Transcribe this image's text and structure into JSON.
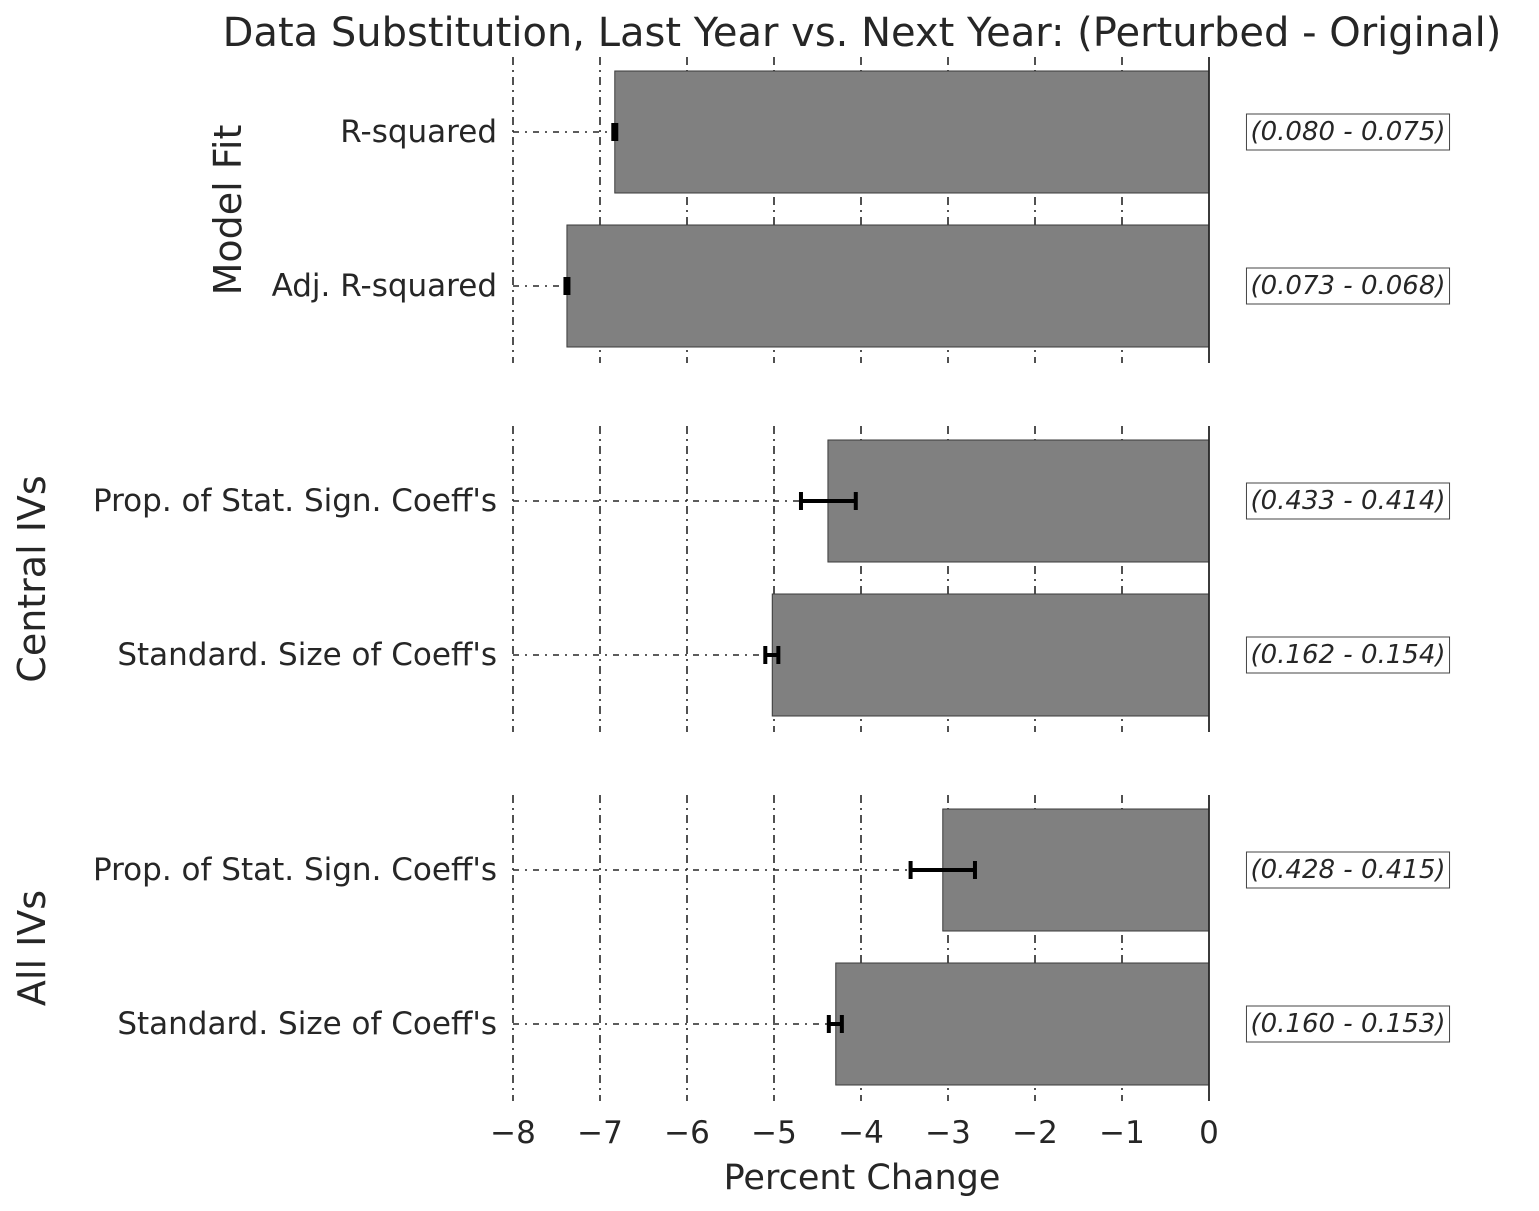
{
  "chart_data": {
    "type": "bar",
    "orientation": "horizontal",
    "title": "Data Substitution, Last Year vs. Next Year: (Perturbed - Original)",
    "xlabel": "Percent Change",
    "xlim": [
      -8,
      0
    ],
    "xticks": [
      "−8",
      "−7",
      "−6",
      "−5",
      "−4",
      "−3",
      "−2",
      "−1",
      "0"
    ],
    "xtick_values": [
      -8,
      -7,
      -6,
      -5,
      -4,
      -3,
      -2,
      -1,
      0
    ],
    "grid": true,
    "bar_color": "#808080",
    "panels": [
      {
        "group_label": "Model Fit",
        "rows": [
          {
            "label": "R-squared",
            "value": -6.83,
            "err_low": -6.86,
            "err_high": -6.8,
            "annotation": "(0.080 - 0.075)"
          },
          {
            "label": "Adj. R-squared",
            "value": -7.38,
            "err_low": -7.41,
            "err_high": -7.35,
            "annotation": "(0.073 - 0.068)"
          }
        ]
      },
      {
        "group_label": "Central IVs",
        "rows": [
          {
            "label": "Prop. of Stat. Sign. Coeff's",
            "value": -4.38,
            "err_low": -4.69,
            "err_high": -4.06,
            "annotation": "(0.433 - 0.414)"
          },
          {
            "label": "Standard. Size of Coeff's",
            "value": -5.02,
            "err_low": -5.1,
            "err_high": -4.95,
            "annotation": "(0.162 - 0.154)"
          }
        ]
      },
      {
        "group_label": "All IVs",
        "rows": [
          {
            "label": "Prop. of Stat. Sign. Coeff's",
            "value": -3.06,
            "err_low": -3.43,
            "err_high": -2.69,
            "annotation": "(0.428 - 0.415)"
          },
          {
            "label": "Standard. Size of Coeff's",
            "value": -4.29,
            "err_low": -4.37,
            "err_high": -4.22,
            "annotation": "(0.160 - 0.153)"
          }
        ]
      }
    ]
  }
}
